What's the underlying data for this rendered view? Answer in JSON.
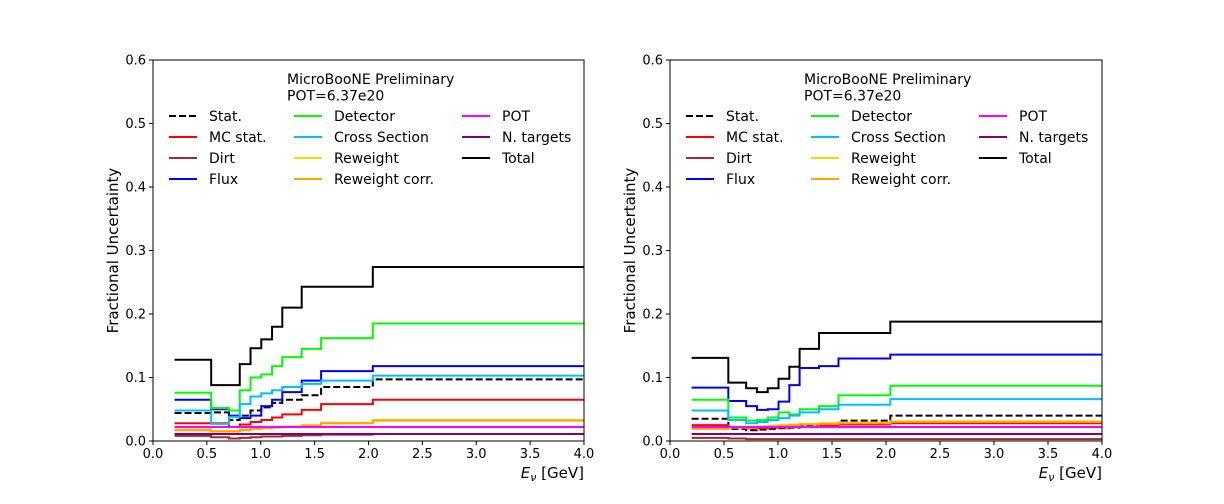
{
  "chart_data": [
    {
      "type": "line",
      "drawstyle": "steps-post",
      "annotation": [
        "MicroBooNE Preliminary",
        "POT=6.37e20"
      ],
      "xlabel_base": "E",
      "xlabel_sub": "ν",
      "xlabel_unit": " [GeV]",
      "ylabel": "Fractional Uncertainty",
      "xlim": [
        0.0,
        4.0
      ],
      "ylim": [
        0.0,
        0.6
      ],
      "xticks": [
        "0.0",
        "0.5",
        "1.0",
        "1.5",
        "2.0",
        "2.5",
        "3.0",
        "3.5",
        "4.0"
      ],
      "yticks": [
        "0.0",
        "0.1",
        "0.2",
        "0.3",
        "0.4",
        "0.5",
        "0.6"
      ],
      "grid": false,
      "legend_position": "top",
      "x": [
        0.2,
        0.54,
        0.705,
        0.805,
        0.905,
        1.005,
        1.105,
        1.2,
        1.38,
        1.56,
        2.04,
        4.0
      ],
      "series": [
        {
          "name": "Stat.",
          "color": "#000000",
          "dashed": true,
          "values": [
            0.044,
            0.045,
            0.033,
            0.04,
            0.048,
            0.053,
            0.06,
            0.065,
            0.072,
            0.085,
            0.097,
            0.097
          ]
        },
        {
          "name": "MC stat.",
          "color": "#ff0000",
          "values": [
            0.028,
            0.028,
            0.022,
            0.026,
            0.03,
            0.033,
            0.037,
            0.042,
            0.049,
            0.058,
            0.065,
            0.065
          ]
        },
        {
          "name": "Dirt",
          "color": "#a52a2a",
          "values": [
            0.008,
            0.006,
            0.004,
            0.005,
            0.006,
            0.007,
            0.007,
            0.008,
            0.009,
            0.01,
            0.011,
            0.011
          ]
        },
        {
          "name": "Flux",
          "color": "#0000ff",
          "values": [
            0.065,
            0.05,
            0.04,
            0.036,
            0.04,
            0.055,
            0.065,
            0.077,
            0.095,
            0.11,
            0.118,
            0.118
          ]
        },
        {
          "name": "Detector",
          "color": "#00ff00",
          "values": [
            0.076,
            0.052,
            0.048,
            0.08,
            0.1,
            0.105,
            0.118,
            0.132,
            0.145,
            0.162,
            0.185,
            0.185
          ]
        },
        {
          "name": "Cross Section",
          "color": "#00bfff",
          "values": [
            0.048,
            0.027,
            0.038,
            0.058,
            0.07,
            0.075,
            0.08,
            0.085,
            0.09,
            0.095,
            0.103,
            0.103
          ]
        },
        {
          "name": "Reweight",
          "color": "#ffd700",
          "values": [
            0.018,
            0.016,
            0.016,
            0.018,
            0.02,
            0.021,
            0.022,
            0.023,
            0.025,
            0.029,
            0.033,
            0.033
          ]
        },
        {
          "name": "Reweight corr.",
          "color": "#ffa500",
          "values": [
            0.017,
            0.015,
            0.015,
            0.017,
            0.019,
            0.02,
            0.021,
            0.022,
            0.024,
            0.028,
            0.032,
            0.032
          ]
        },
        {
          "name": "POT",
          "color": "#ff00ff",
          "values": [
            0.022,
            0.022,
            0.022,
            0.022,
            0.022,
            0.022,
            0.022,
            0.022,
            0.022,
            0.022,
            0.022,
            0.022
          ]
        },
        {
          "name": "N. targets",
          "color": "#800080",
          "values": [
            0.011,
            0.011,
            0.011,
            0.011,
            0.011,
            0.011,
            0.011,
            0.011,
            0.011,
            0.011,
            0.011,
            0.011
          ]
        },
        {
          "name": "Total",
          "color": "#000000",
          "width": 2,
          "values": [
            0.128,
            0.088,
            0.088,
            0.121,
            0.146,
            0.16,
            0.18,
            0.21,
            0.243,
            0.243,
            0.274,
            0.274
          ]
        }
      ]
    },
    {
      "type": "line",
      "drawstyle": "steps-post",
      "annotation": [
        "MicroBooNE Preliminary",
        "POT=6.37e20"
      ],
      "xlabel_base": "E",
      "xlabel_sub": "ν",
      "xlabel_unit": " [GeV]",
      "ylabel": "Fractional Uncertainty",
      "xlim": [
        0.0,
        4.0
      ],
      "ylim": [
        0.0,
        0.6
      ],
      "xticks": [
        "0.0",
        "0.5",
        "1.0",
        "1.5",
        "2.0",
        "2.5",
        "3.0",
        "3.5",
        "4.0"
      ],
      "yticks": [
        "0.0",
        "0.1",
        "0.2",
        "0.3",
        "0.4",
        "0.5",
        "0.6"
      ],
      "grid": false,
      "legend_position": "top",
      "x": [
        0.2,
        0.54,
        0.705,
        0.805,
        0.905,
        1.005,
        1.105,
        1.2,
        1.38,
        1.56,
        2.04,
        4.0
      ],
      "series": [
        {
          "name": "Stat.",
          "color": "#000000",
          "dashed": true,
          "values": [
            0.035,
            0.019,
            0.017,
            0.018,
            0.019,
            0.02,
            0.021,
            0.023,
            0.026,
            0.032,
            0.04,
            0.04
          ]
        },
        {
          "name": "MC stat.",
          "color": "#ff0000",
          "values": [
            0.025,
            0.022,
            0.02,
            0.02,
            0.021,
            0.021,
            0.022,
            0.022,
            0.024,
            0.026,
            0.028,
            0.028
          ]
        },
        {
          "name": "Dirt",
          "color": "#a52a2a",
          "values": [
            0.005,
            0.004,
            0.003,
            0.003,
            0.003,
            0.003,
            0.003,
            0.003,
            0.003,
            0.003,
            0.003,
            0.003
          ]
        },
        {
          "name": "Flux",
          "color": "#0000ff",
          "values": [
            0.084,
            0.063,
            0.055,
            0.049,
            0.05,
            0.062,
            0.088,
            0.115,
            0.118,
            0.13,
            0.136,
            0.136
          ]
        },
        {
          "name": "Detector",
          "color": "#00ff00",
          "values": [
            0.065,
            0.037,
            0.032,
            0.033,
            0.037,
            0.045,
            0.042,
            0.05,
            0.055,
            0.072,
            0.087,
            0.087
          ]
        },
        {
          "name": "Cross Section",
          "color": "#00bfff",
          "values": [
            0.048,
            0.033,
            0.028,
            0.03,
            0.033,
            0.036,
            0.04,
            0.045,
            0.05,
            0.057,
            0.066,
            0.066
          ]
        },
        {
          "name": "Reweight",
          "color": "#ffd700",
          "values": [
            0.02,
            0.022,
            0.022,
            0.023,
            0.024,
            0.025,
            0.026,
            0.027,
            0.028,
            0.029,
            0.031,
            0.031
          ]
        },
        {
          "name": "Reweight corr.",
          "color": "#ffa500",
          "values": [
            0.019,
            0.021,
            0.021,
            0.022,
            0.023,
            0.024,
            0.025,
            0.026,
            0.027,
            0.028,
            0.03,
            0.03
          ]
        },
        {
          "name": "POT",
          "color": "#ff00ff",
          "values": [
            0.022,
            0.022,
            0.022,
            0.022,
            0.022,
            0.022,
            0.022,
            0.022,
            0.022,
            0.022,
            0.022,
            0.022
          ]
        },
        {
          "name": "N. targets",
          "color": "#800080",
          "values": [
            0.011,
            0.011,
            0.011,
            0.011,
            0.011,
            0.011,
            0.011,
            0.011,
            0.011,
            0.011,
            0.011,
            0.011
          ]
        },
        {
          "name": "Total",
          "color": "#000000",
          "width": 2,
          "values": [
            0.131,
            0.092,
            0.083,
            0.077,
            0.083,
            0.098,
            0.117,
            0.145,
            0.17,
            0.17,
            0.188,
            0.188
          ]
        }
      ]
    }
  ]
}
